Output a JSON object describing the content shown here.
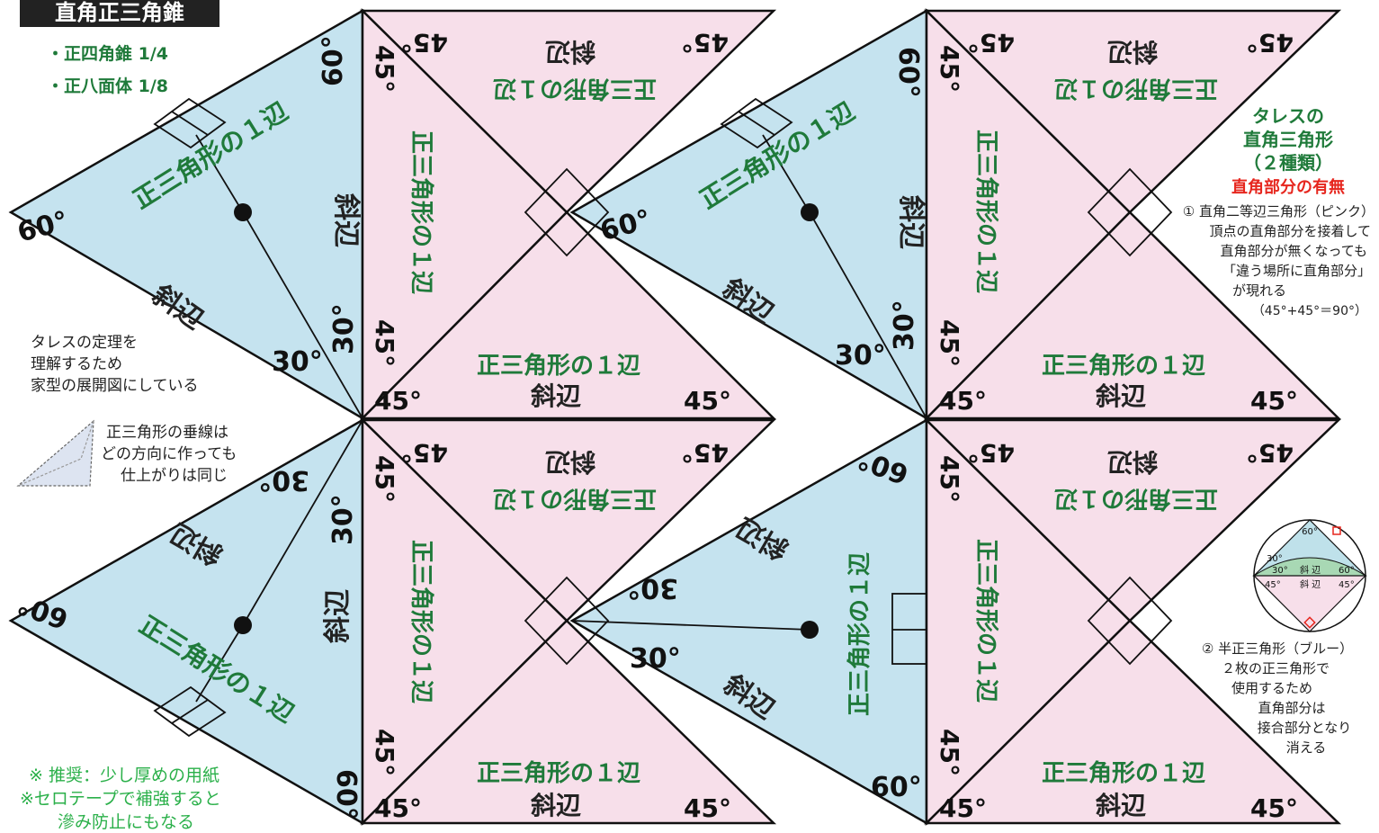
{
  "title": "直角正三角錐",
  "subtitle_items": [
    "・正四角錐 1/4",
    "・正八面体 1/8"
  ],
  "labels": {
    "side_eq": "正三角形の１辺",
    "hyp": "斜辺",
    "deg30": "30°",
    "deg45": "45°",
    "deg60": "60°"
  },
  "notes": {
    "thales_lines": [
      "タレスの定理を",
      "理解するため",
      "家型の展開図にしている"
    ],
    "perp_lines": [
      "正三角形の垂線は",
      "どの方向に作っても",
      "仕上がりは同じ"
    ],
    "recommend_lines": [
      "※ 推奨：少し厚めの用紙",
      "※セロテープで補強すると",
      "滲み防止にもなる"
    ]
  },
  "right_panel": {
    "head_lines": [
      "タレスの",
      "直角三角形",
      "（２種類）"
    ],
    "red_line": "直角部分の有無",
    "pink_lines": [
      "① 直角二等辺三角形（ピンク）",
      "頂点の直角部分を接着して",
      "直角部分が無くなっても",
      "「違う場所に直角部分」",
      "が現れる",
      "（45°+45°＝90°）"
    ],
    "blue_lines": [
      "② 半正三角形（ブルー）",
      "２枚の正三角形で",
      "使用するため",
      "直角部分は",
      "接合部分となり",
      "消える"
    ],
    "circle_labels": {
      "top": "60°",
      "left30": "30°",
      "right60": "60°",
      "hyp1": "斜 辺",
      "hyp2": "斜 辺",
      "l45": "45°",
      "r45": "45°",
      "mid30": "30°"
    }
  },
  "colors": {
    "blue": "#c5e3ef",
    "pink": "#f7dfea",
    "green": "#1f7a3a",
    "red": "#e6261e"
  }
}
